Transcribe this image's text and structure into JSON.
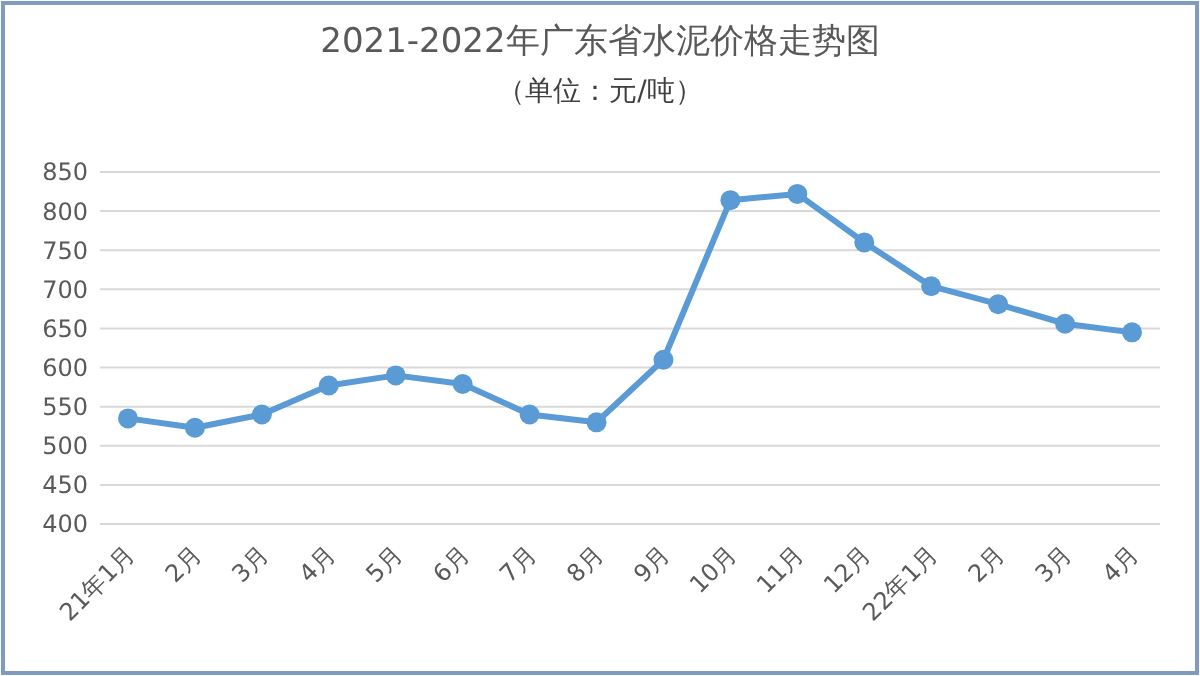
{
  "chart_data": {
    "type": "line",
    "title": "2021-2022年广东省水泥价格走势图",
    "subtitle": "（单位：元/吨）",
    "categories": [
      "21年1月",
      "2月",
      "3月",
      "4月",
      "5月",
      "6月",
      "7月",
      "8月",
      "9月",
      "10月",
      "11月",
      "12月",
      "22年1月",
      "2月",
      "3月",
      "4月"
    ],
    "series": [
      {
        "color": "#5b9bd5",
        "values": [
          535,
          523,
          540,
          577,
          590,
          579,
          540,
          530,
          610,
          814,
          822,
          760,
          704,
          681,
          656,
          645
        ]
      }
    ],
    "ylim": [
      400,
      850
    ],
    "yticks": [
      400,
      450,
      500,
      550,
      600,
      650,
      700,
      750,
      800,
      850
    ],
    "grid": "y",
    "marker": "circle",
    "line_style": "solid"
  }
}
